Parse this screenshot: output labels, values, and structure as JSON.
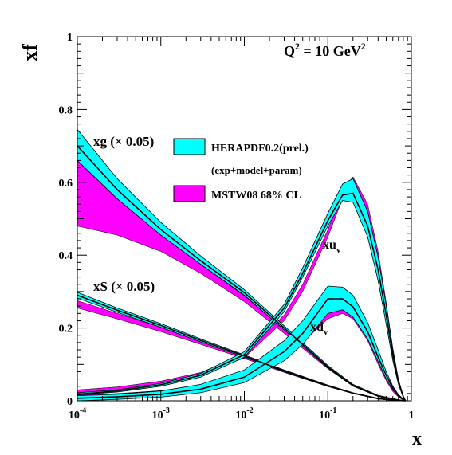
{
  "chart_data": {
    "type": "line",
    "xscale": "log",
    "xlim": [
      0.0001,
      1
    ],
    "ylim": [
      0,
      1
    ],
    "x_ticks": [
      {
        "x": 0.0001,
        "base": "10",
        "exp": "-4"
      },
      {
        "x": 0.001,
        "base": "10",
        "exp": "-3"
      },
      {
        "x": 0.01,
        "base": "10",
        "exp": "-2"
      },
      {
        "x": 0.1,
        "base": "10",
        "exp": "-1"
      },
      {
        "x": 1,
        "base": "1",
        "exp": ""
      }
    ],
    "y_ticks": [
      {
        "y": 0,
        "label": "0"
      },
      {
        "y": 0.2,
        "label": "0.2"
      },
      {
        "y": 0.4,
        "label": "0.4"
      },
      {
        "y": 0.6,
        "label": "0.6"
      },
      {
        "y": 0.8,
        "label": "0.8"
      },
      {
        "y": 1,
        "label": "1"
      }
    ],
    "xlabel": "x",
    "ylabel": "xf",
    "scale_label": {
      "q": "Q",
      "q_exp": "2",
      "eq": " = 10 GeV",
      "unit_exp": "2"
    },
    "legend": {
      "placement": "center",
      "entries": [
        {
          "text": "HERAPDF0.2(prel.)",
          "color": "#00ffff"
        },
        {
          "text": "(exp+model+param)",
          "color": ""
        },
        {
          "text": "MSTW08 68% CL",
          "color": "#ff00ff"
        }
      ]
    },
    "curve_labels": [
      {
        "id": "xg",
        "text": "xg (× 0.05)"
      },
      {
        "id": "xs",
        "text": "xS (× 0.05)"
      },
      {
        "id": "xuv",
        "base": "xu",
        "sub": "v"
      },
      {
        "id": "xdv",
        "base": "xd",
        "sub": "v"
      }
    ],
    "colors": {
      "hera": "#00ffff",
      "mstw": "#ff00ff",
      "central": "#000000"
    },
    "series": [
      {
        "id": "xg",
        "band": "hera",
        "x": [
          0.0001,
          0.0003,
          0.001,
          0.003,
          0.01,
          0.03,
          0.1,
          0.2,
          0.4,
          0.7,
          0.85
        ],
        "low": [
          0.66,
          0.555,
          0.455,
          0.375,
          0.29,
          0.195,
          0.09,
          0.04,
          0.012,
          0.002,
          0.0
        ],
        "central": [
          0.7,
          0.58,
          0.47,
          0.385,
          0.297,
          0.2,
          0.093,
          0.042,
          0.013,
          0.002,
          0.0
        ],
        "high": [
          0.745,
          0.61,
          0.49,
          0.398,
          0.305,
          0.206,
          0.097,
          0.045,
          0.015,
          0.003,
          0.0
        ]
      },
      {
        "id": "xg",
        "band": "mstw",
        "x": [
          0.0001,
          0.0003,
          0.001,
          0.003,
          0.01,
          0.03,
          0.1,
          0.2,
          0.4,
          0.7,
          0.85
        ],
        "low": [
          0.48,
          0.455,
          0.41,
          0.35,
          0.272,
          0.185,
          0.088,
          0.04,
          0.012,
          0.002,
          0.0
        ],
        "central": [
          0.57,
          0.52,
          0.44,
          0.365,
          0.28,
          0.19,
          0.09,
          0.041,
          0.012,
          0.002,
          0.0
        ],
        "high": [
          0.67,
          0.565,
          0.455,
          0.375,
          0.288,
          0.195,
          0.092,
          0.042,
          0.013,
          0.002,
          0.0
        ]
      },
      {
        "id": "xs",
        "band": "hera",
        "x": [
          0.0001,
          0.0003,
          0.001,
          0.003,
          0.01,
          0.03,
          0.1,
          0.2,
          0.4,
          0.7,
          0.85
        ],
        "low": [
          0.282,
          0.243,
          0.202,
          0.162,
          0.12,
          0.08,
          0.04,
          0.02,
          0.005,
          0.0,
          0.0
        ],
        "central": [
          0.29,
          0.249,
          0.207,
          0.166,
          0.123,
          0.082,
          0.041,
          0.021,
          0.006,
          0.001,
          0.0
        ],
        "high": [
          0.298,
          0.255,
          0.212,
          0.17,
          0.126,
          0.085,
          0.043,
          0.022,
          0.007,
          0.001,
          0.0
        ]
      },
      {
        "id": "xs",
        "band": "mstw",
        "x": [
          0.0001,
          0.0003,
          0.001,
          0.003,
          0.01,
          0.03,
          0.1,
          0.2,
          0.4,
          0.7,
          0.85
        ],
        "low": [
          0.255,
          0.225,
          0.19,
          0.155,
          0.116,
          0.078,
          0.039,
          0.02,
          0.005,
          0.0,
          0.0
        ],
        "central": [
          0.265,
          0.233,
          0.196,
          0.159,
          0.119,
          0.08,
          0.04,
          0.02,
          0.006,
          0.001,
          0.0
        ],
        "high": [
          0.275,
          0.24,
          0.202,
          0.163,
          0.122,
          0.082,
          0.041,
          0.021,
          0.006,
          0.001,
          0.0
        ]
      },
      {
        "id": "xuv",
        "band": "hera",
        "x": [
          0.0001,
          0.0003,
          0.001,
          0.003,
          0.01,
          0.03,
          0.05,
          0.1,
          0.15,
          0.2,
          0.3,
          0.4,
          0.5,
          0.6,
          0.7,
          0.8,
          0.85
        ],
        "low": [
          0.016,
          0.024,
          0.04,
          0.065,
          0.12,
          0.245,
          0.34,
          0.48,
          0.55,
          0.545,
          0.45,
          0.33,
          0.21,
          0.11,
          0.045,
          0.01,
          0.0
        ],
        "central": [
          0.018,
          0.027,
          0.044,
          0.07,
          0.127,
          0.255,
          0.35,
          0.495,
          0.565,
          0.57,
          0.48,
          0.36,
          0.235,
          0.125,
          0.05,
          0.012,
          0.0
        ],
        "high": [
          0.022,
          0.03,
          0.048,
          0.075,
          0.135,
          0.265,
          0.365,
          0.515,
          0.595,
          0.61,
          0.52,
          0.395,
          0.26,
          0.14,
          0.057,
          0.014,
          0.0
        ]
      },
      {
        "id": "xuv",
        "band": "mstw",
        "x": [
          0.0001,
          0.0003,
          0.001,
          0.003,
          0.01,
          0.03,
          0.05,
          0.1,
          0.15,
          0.2,
          0.3,
          0.4,
          0.5,
          0.6,
          0.7,
          0.8,
          0.85
        ],
        "low": [
          0.022,
          0.03,
          0.046,
          0.07,
          0.118,
          0.22,
          0.3,
          0.45,
          0.555,
          0.59,
          0.52,
          0.39,
          0.255,
          0.135,
          0.055,
          0.012,
          0.0
        ],
        "central": [
          0.026,
          0.034,
          0.05,
          0.074,
          0.123,
          0.228,
          0.31,
          0.46,
          0.565,
          0.6,
          0.53,
          0.4,
          0.262,
          0.14,
          0.057,
          0.013,
          0.0
        ],
        "high": [
          0.03,
          0.038,
          0.054,
          0.078,
          0.128,
          0.236,
          0.32,
          0.47,
          0.578,
          0.615,
          0.54,
          0.41,
          0.27,
          0.145,
          0.06,
          0.014,
          0.0
        ]
      },
      {
        "id": "xdv",
        "band": "hera",
        "x": [
          0.0001,
          0.0003,
          0.001,
          0.003,
          0.01,
          0.03,
          0.05,
          0.1,
          0.15,
          0.2,
          0.3,
          0.4,
          0.5,
          0.6,
          0.7,
          0.8,
          0.85
        ],
        "low": [
          0.0,
          0.004,
          0.01,
          0.022,
          0.05,
          0.11,
          0.155,
          0.24,
          0.25,
          0.23,
          0.17,
          0.108,
          0.06,
          0.03,
          0.012,
          0.003,
          0.0
        ],
        "central": [
          0.007,
          0.011,
          0.018,
          0.032,
          0.065,
          0.135,
          0.185,
          0.28,
          0.28,
          0.258,
          0.19,
          0.12,
          0.07,
          0.035,
          0.014,
          0.004,
          0.0
        ],
        "high": [
          0.014,
          0.018,
          0.027,
          0.045,
          0.085,
          0.165,
          0.22,
          0.315,
          0.312,
          0.29,
          0.215,
          0.14,
          0.08,
          0.04,
          0.017,
          0.005,
          0.0
        ]
      },
      {
        "id": "xdv",
        "band": "mstw",
        "x": [
          0.0001,
          0.0003,
          0.001,
          0.003,
          0.01,
          0.03,
          0.05,
          0.1,
          0.15,
          0.2,
          0.3,
          0.4,
          0.5,
          0.6,
          0.7,
          0.8,
          0.85
        ],
        "low": [
          0.01,
          0.014,
          0.021,
          0.034,
          0.06,
          0.118,
          0.16,
          0.225,
          0.24,
          0.225,
          0.165,
          0.1,
          0.055,
          0.025,
          0.01,
          0.002,
          0.0
        ],
        "central": [
          0.013,
          0.017,
          0.024,
          0.038,
          0.065,
          0.125,
          0.168,
          0.235,
          0.25,
          0.235,
          0.172,
          0.105,
          0.058,
          0.027,
          0.011,
          0.003,
          0.0
        ],
        "high": [
          0.016,
          0.02,
          0.028,
          0.042,
          0.07,
          0.132,
          0.175,
          0.245,
          0.26,
          0.245,
          0.18,
          0.11,
          0.062,
          0.029,
          0.012,
          0.003,
          0.0
        ]
      }
    ]
  }
}
